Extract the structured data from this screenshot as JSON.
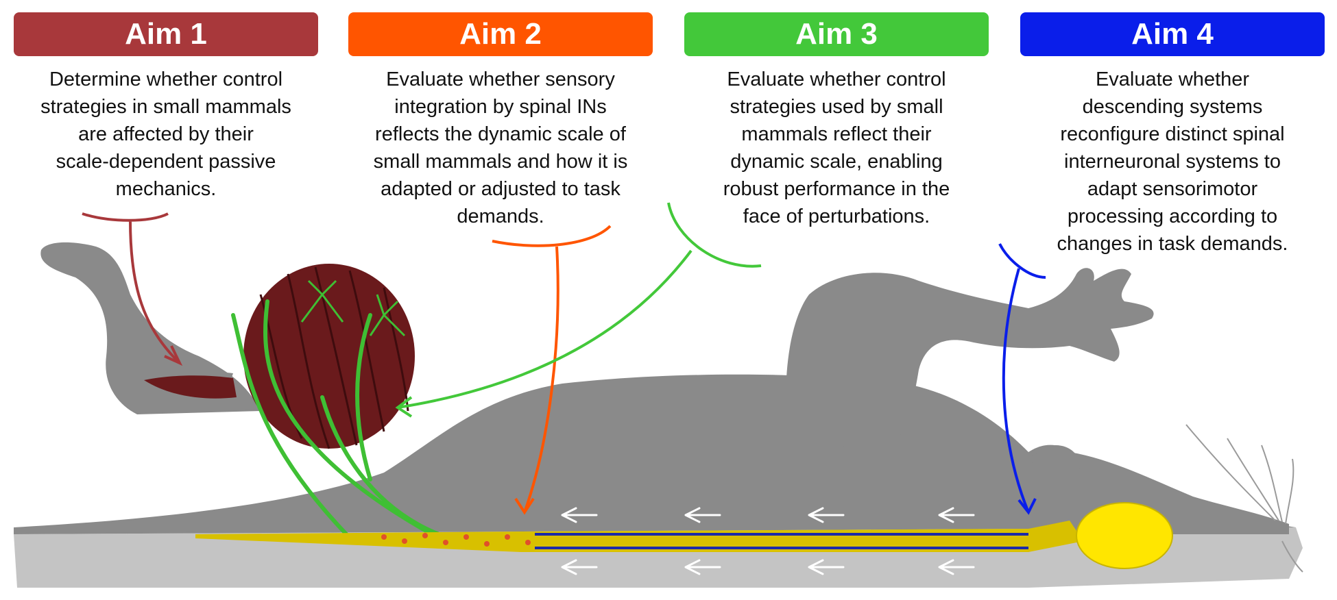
{
  "aims": [
    {
      "title": "Aim 1",
      "color": "#a8383b",
      "lines": [
        "Determine whether control",
        "strategies in small mammals",
        "are affected by their",
        "scale-dependent passive",
        "mechanics."
      ]
    },
    {
      "title": "Aim 2",
      "color": "#ff5500",
      "lines": [
        "Evaluate whether sensory",
        "integration by spinal INs",
        "reflects the dynamic scale of",
        "small mammals and how it is",
        "adapted or adjusted to task",
        "demands."
      ]
    },
    {
      "title": "Aim 3",
      "color": "#43c83a",
      "lines": [
        "Evaluate whether control",
        "strategies used by small",
        "mammals reflect their",
        "dynamic scale, enabling",
        "robust performance in the",
        "face of perturbations."
      ]
    },
    {
      "title": "Aim 4",
      "color": "#0a1eea",
      "lines": [
        "Evaluate whether",
        "descending systems",
        "reconfigure distinct spinal",
        "interneuronal systems to",
        "adapt sensorimotor",
        "processing according to",
        "changes in task demands."
      ]
    }
  ],
  "illustration": {
    "silhouette_color": "#8a8a8a",
    "shadow_color": "#c4c4c4",
    "muscle_color": "#6a1a1c",
    "nerve_color": "#3fbf34",
    "cord_color": "#d8c000",
    "brain_color": "#ffe600",
    "cells_color": "#e0502a",
    "tracts_color": "#1b2aa8"
  }
}
